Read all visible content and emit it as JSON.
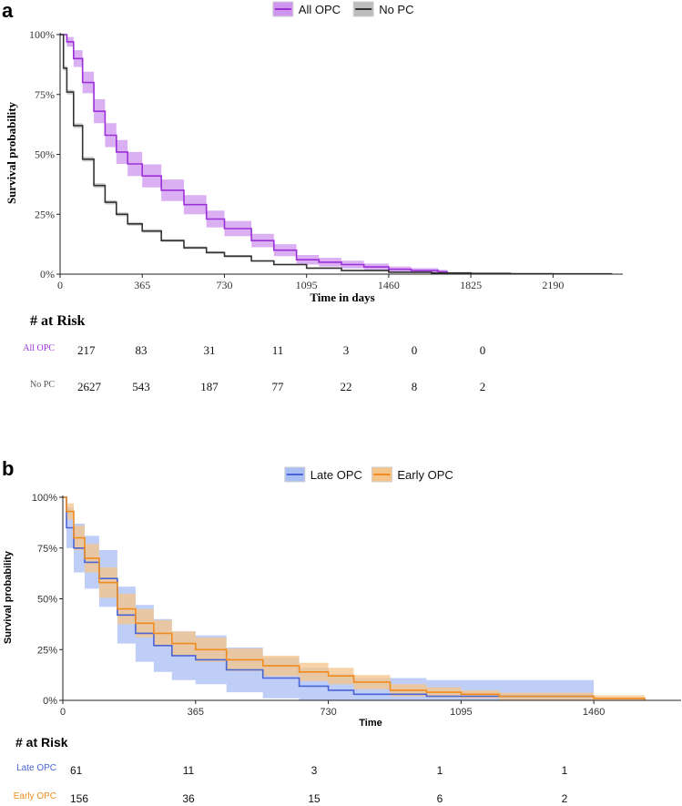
{
  "panels": [
    {
      "letter": "a",
      "chart_data": {
        "type": "line",
        "subtype": "kaplan-meier",
        "title": "",
        "xlabel": "Time in days",
        "ylabel": "Survival probability",
        "xlim": [
          0,
          2500
        ],
        "ylim": [
          0,
          1
        ],
        "x_ticks": [
          0,
          365,
          730,
          1095,
          1460,
          1825,
          2190
        ],
        "y_ticks": [
          "0%",
          "25%",
          "50%",
          "75%",
          "100%"
        ],
        "y_tick_values": [
          0,
          0.25,
          0.5,
          0.75,
          1.0
        ],
        "legend_position": "top-center",
        "series": [
          {
            "name": "All OPC",
            "color": "#9b30d9",
            "band_color": "#cf96ef",
            "x": [
              0,
              30,
              60,
              100,
              150,
              200,
              250,
              300,
              365,
              450,
              550,
              650,
              730,
              850,
              950,
              1050,
              1150,
              1250,
              1350,
              1460,
              1560,
              1680,
              1720
            ],
            "y": [
              1.0,
              0.97,
              0.9,
              0.8,
              0.68,
              0.58,
              0.51,
              0.46,
              0.41,
              0.35,
              0.29,
              0.23,
              0.19,
              0.14,
              0.1,
              0.06,
              0.05,
              0.04,
              0.03,
              0.02,
              0.015,
              0.01,
              0.0
            ],
            "ci_width": [
              0.0,
              0.02,
              0.035,
              0.045,
              0.05,
              0.05,
              0.05,
              0.05,
              0.048,
              0.045,
              0.04,
              0.035,
              0.032,
              0.028,
              0.025,
              0.02,
              0.018,
              0.016,
              0.014,
              0.012,
              0.01,
              0.008,
              0.0
            ]
          },
          {
            "name": "No PC",
            "color": "#333333",
            "band_color": "#bdbdbd",
            "x": [
              0,
              15,
              30,
              60,
              100,
              150,
              200,
              250,
              300,
              365,
              450,
              550,
              650,
              730,
              850,
              950,
              1095,
              1250,
              1460,
              1650,
              1825,
              2000,
              2190,
              2300,
              2450
            ],
            "y": [
              1.0,
              0.86,
              0.76,
              0.62,
              0.48,
              0.37,
              0.3,
              0.25,
              0.21,
              0.18,
              0.14,
              0.11,
              0.09,
              0.075,
              0.055,
              0.04,
              0.025,
              0.015,
              0.008,
              0.005,
              0.003,
              0.002,
              0.001,
              0.001,
              0.0
            ],
            "ci_width": [
              0.0,
              0.01,
              0.01,
              0.01,
              0.01,
              0.01,
              0.009,
              0.008,
              0.008,
              0.007,
              0.006,
              0.006,
              0.005,
              0.005,
              0.004,
              0.004,
              0.003,
              0.003,
              0.002,
              0.002,
              0.001,
              0.001,
              0.001,
              0.001,
              0.0
            ]
          }
        ]
      },
      "risk_table": {
        "title": "# at Risk",
        "rows": [
          {
            "label": "All OPC",
            "color": "#9b30d9",
            "values": [
              "217",
              "83",
              "31",
              "11",
              "3",
              "0",
              "0"
            ]
          },
          {
            "label": "No PC",
            "color": "#555555",
            "values": [
              "2627",
              "543",
              "187",
              "77",
              "22",
              "8",
              "2"
            ]
          }
        ]
      }
    },
    {
      "letter": "b",
      "chart_data": {
        "type": "line",
        "subtype": "kaplan-meier",
        "title": "",
        "xlabel": "Time",
        "ylabel": "Survival probability",
        "xlim": [
          0,
          1700
        ],
        "ylim": [
          0,
          1
        ],
        "x_ticks": [
          0,
          365,
          730,
          1095,
          1460
        ],
        "y_ticks": [
          "0%",
          "25%",
          "50%",
          "75%",
          "100%"
        ],
        "y_tick_values": [
          0,
          0.25,
          0.5,
          0.75,
          1.0
        ],
        "legend_position": "top-center",
        "series": [
          {
            "name": "Late OPC",
            "color": "#4a64d6",
            "band_color": "#a9bef3",
            "x": [
              0,
              10,
              30,
              60,
              100,
              150,
              200,
              250,
              300,
              365,
              450,
              550,
              650,
              730,
              800,
              900,
              1000,
              1095,
              1460
            ],
            "y": [
              1.0,
              0.85,
              0.75,
              0.68,
              0.6,
              0.42,
              0.33,
              0.27,
              0.22,
              0.2,
              0.15,
              0.11,
              0.07,
              0.05,
              0.03,
              0.03,
              0.02,
              0.02,
              0.02
            ],
            "ci_width": [
              0.0,
              0.1,
              0.12,
              0.13,
              0.14,
              0.14,
              0.14,
              0.13,
              0.12,
              0.12,
              0.11,
              0.1,
              0.09,
              0.08,
              0.08,
              0.08,
              0.08,
              0.08,
              0.09
            ]
          },
          {
            "name": "Early OPC",
            "color": "#f08c1e",
            "band_color": "#f5c48a",
            "x": [
              0,
              10,
              30,
              60,
              100,
              150,
              200,
              250,
              300,
              365,
              450,
              550,
              650,
              730,
              800,
              900,
              1000,
              1095,
              1200,
              1460,
              1600
            ],
            "y": [
              1.0,
              0.93,
              0.8,
              0.7,
              0.58,
              0.45,
              0.38,
              0.33,
              0.28,
              0.25,
              0.2,
              0.17,
              0.14,
              0.12,
              0.09,
              0.05,
              0.04,
              0.03,
              0.02,
              0.01,
              0.0
            ],
            "ci_width": [
              0.0,
              0.04,
              0.06,
              0.07,
              0.075,
              0.075,
              0.07,
              0.065,
              0.06,
              0.06,
              0.055,
              0.05,
              0.045,
              0.04,
              0.035,
              0.03,
              0.025,
              0.02,
              0.018,
              0.015,
              0.015
            ]
          }
        ]
      },
      "risk_table": {
        "title": "# at Risk",
        "rows": [
          {
            "label": "Late OPC",
            "color": "#4a64d6",
            "values": [
              "61",
              "11",
              "3",
              "1",
              "1"
            ]
          },
          {
            "label": "Early OPC",
            "color": "#f08c1e",
            "values": [
              "156",
              "36",
              "15",
              "6",
              "2"
            ]
          }
        ]
      }
    }
  ]
}
